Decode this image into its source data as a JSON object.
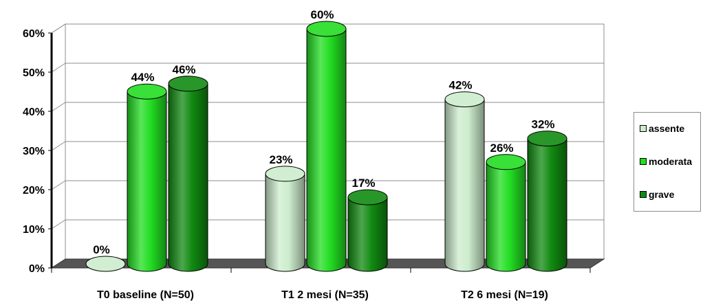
{
  "chart_data": {
    "type": "bar",
    "style": "3d-cylinder",
    "categories": [
      "T0 baseline (N=50)",
      "T1 2 mesi (N=35)",
      "T2 6 mesi (N=19)"
    ],
    "series": [
      {
        "name": "assente",
        "color": "#cdeccd",
        "values": [
          0,
          23,
          42
        ]
      },
      {
        "name": "moderata",
        "color": "#22dd22",
        "values": [
          44,
          60,
          26
        ]
      },
      {
        "name": "grave",
        "color": "#118a11",
        "values": [
          46,
          17,
          32
        ]
      }
    ],
    "ylim": [
      0,
      60
    ],
    "yticks": [
      0,
      10,
      20,
      30,
      40,
      50,
      60
    ],
    "ytick_suffix": "%",
    "grid": true,
    "legend_position": "right",
    "data_labels": true,
    "title": "",
    "xlabel": "",
    "ylabel": ""
  }
}
